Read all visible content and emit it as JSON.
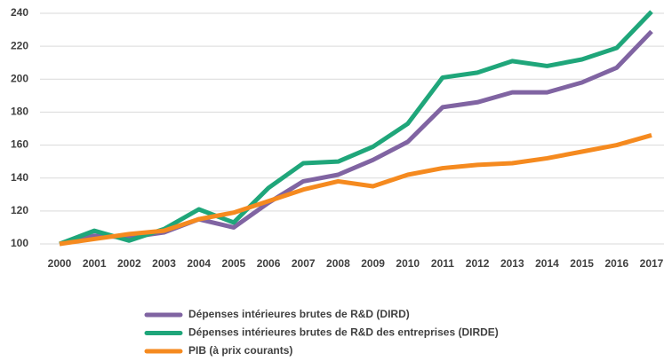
{
  "chart_data": {
    "type": "line",
    "x": [
      "2000",
      "2001",
      "2002",
      "2003",
      "2004",
      "2005",
      "2006",
      "2007",
      "2008",
      "2009",
      "2010",
      "2011",
      "2012",
      "2013",
      "2014",
      "2015",
      "2016",
      "2017"
    ],
    "series": [
      {
        "name": "Dépenses intérieures brutes de R&D (DIRD)",
        "color": "#8064a2",
        "values": [
          100,
          105,
          104,
          107,
          115,
          110,
          125,
          138,
          142,
          151,
          162,
          183,
          186,
          192,
          192,
          198,
          207,
          229
        ]
      },
      {
        "name": "Dépenses intérieures brutes de R&D des entreprises (DIRDE)",
        "color": "#1fa67a",
        "values": [
          100,
          108,
          102,
          109,
          121,
          113,
          134,
          149,
          150,
          159,
          173,
          201,
          204,
          211,
          208,
          212,
          219,
          241
        ]
      },
      {
        "name": "PIB (à prix courants)",
        "color": "#f58a1f",
        "values": [
          100,
          103,
          106,
          108,
          115,
          119,
          126,
          133,
          138,
          135,
          142,
          146,
          148,
          149,
          152,
          156,
          160,
          166
        ]
      }
    ],
    "ylim": [
      100,
      240
    ],
    "yticks": [
      100,
      120,
      140,
      160,
      180,
      200,
      220,
      240
    ],
    "grid": true
  }
}
